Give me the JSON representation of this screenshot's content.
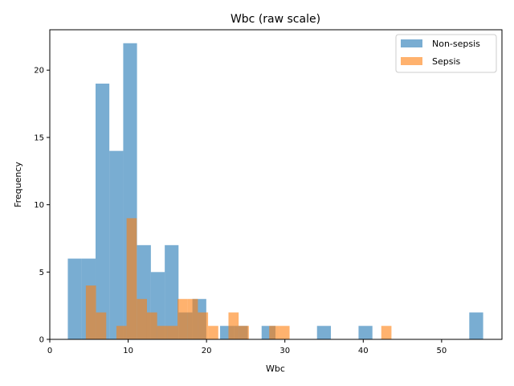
{
  "chart_data": {
    "type": "histogram",
    "title": "Wbc (raw scale)",
    "xlabel": "Wbc",
    "ylabel": "Frequency",
    "xlim": [
      0,
      57.7
    ],
    "ylim": [
      0,
      23
    ],
    "xticks": [
      0,
      10,
      20,
      30,
      40,
      50
    ],
    "yticks": [
      0,
      5,
      10,
      15,
      20
    ],
    "legend_position": "top-right",
    "colors": {
      "Non-sepsis": "#1f77b4",
      "Sepsis": "#ff7f0e"
    },
    "opacity": 0.6,
    "series": [
      {
        "name": "Non-sepsis",
        "bins": [
          {
            "x0": 2.3,
            "x1": 4.07,
            "count": 6
          },
          {
            "x0": 4.07,
            "x1": 5.84,
            "count": 6
          },
          {
            "x0": 5.84,
            "x1": 7.6,
            "count": 19
          },
          {
            "x0": 7.6,
            "x1": 9.37,
            "count": 14
          },
          {
            "x0": 9.37,
            "x1": 11.13,
            "count": 22
          },
          {
            "x0": 11.13,
            "x1": 12.9,
            "count": 7
          },
          {
            "x0": 12.9,
            "x1": 14.67,
            "count": 5
          },
          {
            "x0": 14.67,
            "x1": 16.43,
            "count": 7
          },
          {
            "x0": 16.43,
            "x1": 18.2,
            "count": 2
          },
          {
            "x0": 18.2,
            "x1": 19.97,
            "count": 3
          },
          {
            "x0": 21.73,
            "x1": 23.5,
            "count": 1
          },
          {
            "x0": 23.5,
            "x1": 25.27,
            "count": 1
          },
          {
            "x0": 27.03,
            "x1": 28.8,
            "count": 1
          },
          {
            "x0": 34.1,
            "x1": 35.87,
            "count": 1
          },
          {
            "x0": 39.4,
            "x1": 41.17,
            "count": 1
          },
          {
            "x0": 53.53,
            "x1": 55.3,
            "count": 2
          }
        ]
      },
      {
        "name": "Sepsis",
        "bins": [
          {
            "x0": 4.6,
            "x1": 5.9,
            "count": 4
          },
          {
            "x0": 5.9,
            "x1": 7.2,
            "count": 2
          },
          {
            "x0": 8.5,
            "x1": 9.8,
            "count": 1
          },
          {
            "x0": 9.8,
            "x1": 11.1,
            "count": 9
          },
          {
            "x0": 11.1,
            "x1": 12.4,
            "count": 3
          },
          {
            "x0": 12.4,
            "x1": 13.7,
            "count": 2
          },
          {
            "x0": 13.7,
            "x1": 15.0,
            "count": 1
          },
          {
            "x0": 15.0,
            "x1": 16.3,
            "count": 1
          },
          {
            "x0": 16.3,
            "x1": 17.6,
            "count": 3
          },
          {
            "x0": 17.6,
            "x1": 18.9,
            "count": 3
          },
          {
            "x0": 18.9,
            "x1": 20.2,
            "count": 2
          },
          {
            "x0": 20.2,
            "x1": 21.5,
            "count": 1
          },
          {
            "x0": 22.8,
            "x1": 24.1,
            "count": 2
          },
          {
            "x0": 24.1,
            "x1": 25.4,
            "count": 1
          },
          {
            "x0": 28.0,
            "x1": 29.3,
            "count": 1
          },
          {
            "x0": 29.3,
            "x1": 30.6,
            "count": 1
          },
          {
            "x0": 42.3,
            "x1": 43.6,
            "count": 1
          }
        ]
      }
    ]
  }
}
